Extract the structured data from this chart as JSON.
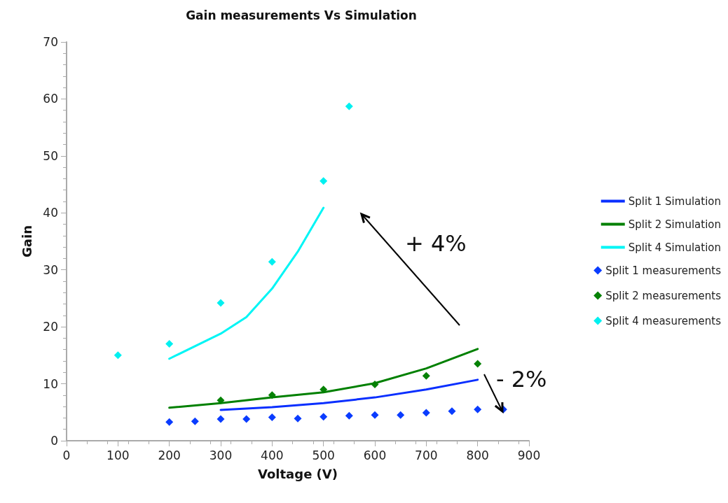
{
  "chart_data": {
    "type": "line",
    "title": "Gain measurements Vs Simulation",
    "xlabel": "Voltage (V)",
    "ylabel": "Gain",
    "xlim": [
      0,
      900
    ],
    "xticks": [
      0,
      100,
      200,
      300,
      400,
      500,
      600,
      700,
      800,
      900
    ],
    "ylim": [
      0,
      70
    ],
    "yticks": [
      0,
      10,
      20,
      30,
      40,
      50,
      60,
      70
    ],
    "grid": false,
    "legend": "right",
    "annotations": [
      "+ 4%",
      "- 2%"
    ],
    "series": [
      {
        "name": "Split 1 Simulation",
        "marker": "none",
        "color": "#0a2fff",
        "x": [
          300,
          400,
          500,
          600,
          700,
          800
        ],
        "values": [
          5.4,
          5.9,
          6.6,
          7.6,
          9.0,
          10.7
        ]
      },
      {
        "name": "Split 2 Simulation",
        "marker": "none",
        "color": "#008000",
        "x": [
          200,
          300,
          400,
          500,
          600,
          700,
          800
        ],
        "values": [
          5.8,
          6.6,
          7.6,
          8.5,
          10.1,
          12.7,
          16.1
        ]
      },
      {
        "name": "Split 4 Simulation",
        "marker": "none",
        "color": "#00f5f5",
        "x": [
          200,
          300,
          350,
          400,
          450,
          500
        ],
        "values": [
          14.4,
          18.8,
          21.7,
          26.7,
          33.2,
          40.9
        ]
      },
      {
        "name": "Split 1 measurements",
        "type": "scatter",
        "marker": "diamond",
        "color": "#0a3cff",
        "x": [
          200,
          250,
          300,
          350,
          400,
          450,
          500,
          550,
          600,
          650,
          700,
          750,
          800,
          850
        ],
        "values": [
          3.3,
          3.4,
          3.8,
          3.8,
          4.1,
          3.9,
          4.2,
          4.4,
          4.5,
          4.5,
          4.9,
          5.2,
          5.5,
          5.5
        ]
      },
      {
        "name": "Split 2 measurements",
        "type": "scatter",
        "marker": "diamond",
        "color": "#068206",
        "x": [
          300,
          400,
          500,
          600,
          700,
          800
        ],
        "values": [
          7.1,
          8.0,
          9.0,
          9.9,
          11.4,
          13.5
        ]
      },
      {
        "name": "Split 4 measurements",
        "type": "scatter",
        "marker": "diamond",
        "color": "#00f0f0",
        "x": [
          100,
          200,
          300,
          400,
          500,
          550
        ],
        "values": [
          15.0,
          17.0,
          24.2,
          31.4,
          45.6,
          58.7
        ]
      }
    ]
  }
}
